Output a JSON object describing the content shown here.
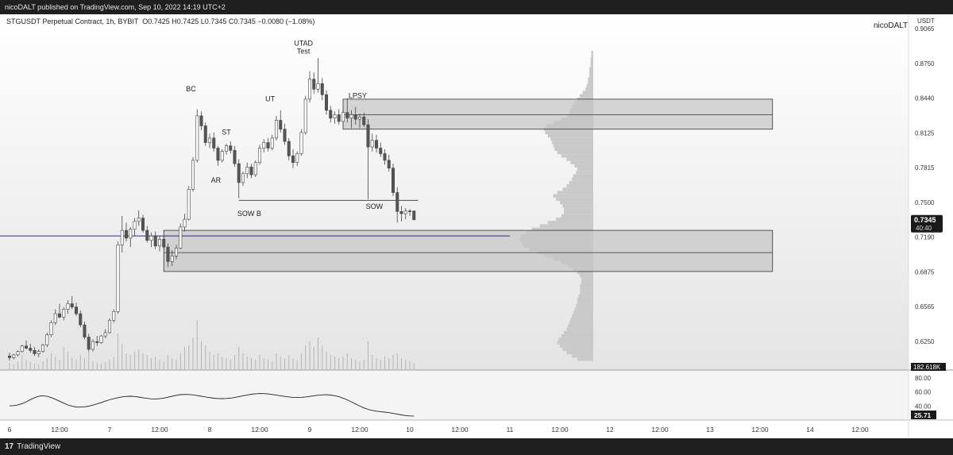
{
  "publish_banner": "nicoDALT published on TradingView.com, Sep 10, 2022 14:19 UTC+2",
  "symbol_line": {
    "symbol": "STGUSDT Perpetual Contract, 1h, BYBIT",
    "ohlc": "O0.7425 H0.7425 L0.7345 C0.7345 −0.0080 (−1.08%)"
  },
  "author_watermark": "nicoDALT",
  "currency": "USDT",
  "footer_brand": {
    "logo": "17",
    "name": "TradingView"
  },
  "colors": {
    "candle_up_fill": "#ffffff",
    "candle_down_fill": "#555555",
    "candle_outline": "#444444",
    "volume_profile": "#c9c9c9",
    "zone_fill": "#c4c4c4",
    "zone_border": "#333333",
    "poc_line": "#2a2a8a",
    "price_badge": "#1a1a1a",
    "rsi_line": "#222222",
    "background_top": "#ffffff",
    "background_bottom": "#e4e4e4"
  },
  "chart_data": {
    "type": "candlestick",
    "y_axis": {
      "range": [
        0.6065,
        0.9065
      ],
      "scale": "linear",
      "tick_labels": [
        "0.9065",
        "0.8750",
        "0.8440",
        "0.8125",
        "0.7815",
        "0.7500",
        "0.7190",
        "0.6875",
        "0.6565",
        "0.6250"
      ]
    },
    "x_axis": {
      "tick_labels": [
        "6",
        "12:00",
        "7",
        "12:00",
        "8",
        "12:00",
        "9",
        "12:00",
        "10",
        "12:00",
        "11",
        "12:00",
        "12",
        "12:00",
        "13",
        "12:00",
        "14",
        "12:00"
      ],
      "hours": [
        0,
        12,
        24,
        36,
        48,
        60,
        72,
        84,
        96,
        108,
        120,
        132,
        144,
        156,
        168,
        180,
        192,
        204
      ]
    },
    "last_price": {
      "price": "0.7345",
      "countdown": "40:40",
      "value": 0.7345
    },
    "volume_label": "182.618K",
    "rsi": {
      "tick_labels": [
        "80.00",
        "60.00",
        "40.00"
      ],
      "tick_values": [
        80,
        60,
        40
      ],
      "range": [
        20,
        90
      ],
      "last": "25.71",
      "values": [
        40.2,
        40.6,
        41.6,
        43.4,
        46.0,
        49.0,
        51.8,
        53.8,
        54.6,
        53.8,
        52.0,
        49.6,
        46.8,
        44.0,
        41.5,
        39.6,
        38.6,
        38.4,
        38.8,
        39.8,
        41.2,
        43.0,
        45.0,
        47.0,
        48.8,
        50.4,
        51.8,
        53.0,
        53.7,
        53.9,
        53.5,
        52.7,
        51.7,
        50.8,
        50.2,
        50.0,
        50.4,
        51.3,
        52.5,
        53.9,
        55.2,
        56.1,
        56.5,
        56.4,
        55.8,
        54.9,
        53.9,
        52.9,
        51.9,
        51.1,
        50.6,
        50.5,
        50.7,
        51.2,
        52.1,
        53.2,
        54.5,
        55.7,
        56.7,
        57.4,
        57.7,
        57.6,
        57.1,
        56.4,
        55.5,
        54.5,
        53.6,
        52.8,
        52.3,
        52.1,
        52.3,
        52.8,
        53.6,
        54.5,
        55.3,
        55.8,
        56.0,
        55.6,
        54.7,
        53.2,
        51.2,
        48.7,
        45.8,
        42.8,
        39.9,
        37.3,
        35.2,
        33.7,
        32.7,
        32.0,
        31.3,
        30.5,
        29.5,
        28.4,
        27.3,
        26.4,
        25.9,
        25.71
      ],
      "x_start": 0,
      "x_end": 97
    },
    "candles": [
      {
        "t": 0,
        "o": 0.612,
        "h": 0.615,
        "l": 0.608,
        "c": 0.6105
      },
      {
        "t": 1,
        "o": 0.6105,
        "h": 0.614,
        "l": 0.609,
        "c": 0.613
      },
      {
        "t": 2,
        "o": 0.613,
        "h": 0.617,
        "l": 0.6115,
        "c": 0.616
      },
      {
        "t": 3,
        "o": 0.616,
        "h": 0.622,
        "l": 0.615,
        "c": 0.621
      },
      {
        "t": 4,
        "o": 0.621,
        "h": 0.626,
        "l": 0.618,
        "c": 0.619
      },
      {
        "t": 5,
        "o": 0.619,
        "h": 0.623,
        "l": 0.615,
        "c": 0.617
      },
      {
        "t": 6,
        "o": 0.617,
        "h": 0.62,
        "l": 0.612,
        "c": 0.614
      },
      {
        "t": 7,
        "o": 0.614,
        "h": 0.618,
        "l": 0.611,
        "c": 0.616
      },
      {
        "t": 8,
        "o": 0.616,
        "h": 0.623,
        "l": 0.615,
        "c": 0.622
      },
      {
        "t": 9,
        "o": 0.622,
        "h": 0.633,
        "l": 0.62,
        "c": 0.631
      },
      {
        "t": 10,
        "o": 0.631,
        "h": 0.644,
        "l": 0.629,
        "c": 0.642
      },
      {
        "t": 11,
        "o": 0.642,
        "h": 0.654,
        "l": 0.64,
        "c": 0.65
      },
      {
        "t": 12,
        "o": 0.65,
        "h": 0.659,
        "l": 0.646,
        "c": 0.647
      },
      {
        "t": 13,
        "o": 0.647,
        "h": 0.656,
        "l": 0.644,
        "c": 0.654
      },
      {
        "t": 14,
        "o": 0.654,
        "h": 0.662,
        "l": 0.65,
        "c": 0.659
      },
      {
        "t": 15,
        "o": 0.659,
        "h": 0.666,
        "l": 0.654,
        "c": 0.656
      },
      {
        "t": 16,
        "o": 0.656,
        "h": 0.66,
        "l": 0.648,
        "c": 0.65
      },
      {
        "t": 17,
        "o": 0.65,
        "h": 0.653,
        "l": 0.638,
        "c": 0.64
      },
      {
        "t": 18,
        "o": 0.64,
        "h": 0.643,
        "l": 0.627,
        "c": 0.629
      },
      {
        "t": 19,
        "o": 0.629,
        "h": 0.632,
        "l": 0.616,
        "c": 0.618
      },
      {
        "t": 20,
        "o": 0.618,
        "h": 0.627,
        "l": 0.616,
        "c": 0.625
      },
      {
        "t": 21,
        "o": 0.625,
        "h": 0.63,
        "l": 0.621,
        "c": 0.624
      },
      {
        "t": 22,
        "o": 0.624,
        "h": 0.631,
        "l": 0.623,
        "c": 0.63
      },
      {
        "t": 23,
        "o": 0.63,
        "h": 0.636,
        "l": 0.628,
        "c": 0.633
      },
      {
        "t": 24,
        "o": 0.633,
        "h": 0.646,
        "l": 0.632,
        "c": 0.644
      },
      {
        "t": 25,
        "o": 0.644,
        "h": 0.654,
        "l": 0.642,
        "c": 0.652
      },
      {
        "t": 26,
        "o": 0.652,
        "h": 0.715,
        "l": 0.65,
        "c": 0.712
      },
      {
        "t": 27,
        "o": 0.712,
        "h": 0.738,
        "l": 0.705,
        "c": 0.725
      },
      {
        "t": 28,
        "o": 0.725,
        "h": 0.732,
        "l": 0.715,
        "c": 0.718
      },
      {
        "t": 29,
        "o": 0.718,
        "h": 0.728,
        "l": 0.71,
        "c": 0.726
      },
      {
        "t": 30,
        "o": 0.726,
        "h": 0.736,
        "l": 0.72,
        "c": 0.733
      },
      {
        "t": 31,
        "o": 0.733,
        "h": 0.743,
        "l": 0.729,
        "c": 0.736
      },
      {
        "t": 32,
        "o": 0.736,
        "h": 0.739,
        "l": 0.723,
        "c": 0.725
      },
      {
        "t": 33,
        "o": 0.725,
        "h": 0.729,
        "l": 0.714,
        "c": 0.716
      },
      {
        "t": 34,
        "o": 0.716,
        "h": 0.723,
        "l": 0.71,
        "c": 0.72
      },
      {
        "t": 35,
        "o": 0.72,
        "h": 0.724,
        "l": 0.708,
        "c": 0.711
      },
      {
        "t": 36,
        "o": 0.711,
        "h": 0.72,
        "l": 0.706,
        "c": 0.717
      },
      {
        "t": 37,
        "o": 0.717,
        "h": 0.721,
        "l": 0.708,
        "c": 0.71
      },
      {
        "t": 38,
        "o": 0.71,
        "h": 0.713,
        "l": 0.692,
        "c": 0.697
      },
      {
        "t": 39,
        "o": 0.697,
        "h": 0.707,
        "l": 0.693,
        "c": 0.702
      },
      {
        "t": 40,
        "o": 0.702,
        "h": 0.712,
        "l": 0.699,
        "c": 0.709
      },
      {
        "t": 41,
        "o": 0.709,
        "h": 0.731,
        "l": 0.708,
        "c": 0.728
      },
      {
        "t": 42,
        "o": 0.728,
        "h": 0.74,
        "l": 0.724,
        "c": 0.735
      },
      {
        "t": 43,
        "o": 0.735,
        "h": 0.765,
        "l": 0.734,
        "c": 0.762
      },
      {
        "t": 44,
        "o": 0.762,
        "h": 0.791,
        "l": 0.76,
        "c": 0.788
      },
      {
        "t": 45,
        "o": 0.788,
        "h": 0.834,
        "l": 0.786,
        "c": 0.828
      },
      {
        "t": 46,
        "o": 0.828,
        "h": 0.832,
        "l": 0.815,
        "c": 0.819
      },
      {
        "t": 47,
        "o": 0.819,
        "h": 0.822,
        "l": 0.801,
        "c": 0.804
      },
      {
        "t": 48,
        "o": 0.804,
        "h": 0.812,
        "l": 0.799,
        "c": 0.808
      },
      {
        "t": 49,
        "o": 0.808,
        "h": 0.813,
        "l": 0.796,
        "c": 0.799
      },
      {
        "t": 50,
        "o": 0.799,
        "h": 0.801,
        "l": 0.783,
        "c": 0.788
      },
      {
        "t": 51,
        "o": 0.788,
        "h": 0.798,
        "l": 0.786,
        "c": 0.796
      },
      {
        "t": 52,
        "o": 0.796,
        "h": 0.803,
        "l": 0.793,
        "c": 0.801
      },
      {
        "t": 53,
        "o": 0.801,
        "h": 0.805,
        "l": 0.794,
        "c": 0.797
      },
      {
        "t": 54,
        "o": 0.797,
        "h": 0.801,
        "l": 0.782,
        "c": 0.785
      },
      {
        "t": 55,
        "o": 0.785,
        "h": 0.789,
        "l": 0.754,
        "c": 0.768
      },
      {
        "t": 56,
        "o": 0.768,
        "h": 0.778,
        "l": 0.765,
        "c": 0.776
      },
      {
        "t": 57,
        "o": 0.776,
        "h": 0.786,
        "l": 0.772,
        "c": 0.782
      },
      {
        "t": 58,
        "o": 0.782,
        "h": 0.785,
        "l": 0.772,
        "c": 0.775
      },
      {
        "t": 59,
        "o": 0.775,
        "h": 0.788,
        "l": 0.773,
        "c": 0.786
      },
      {
        "t": 60,
        "o": 0.786,
        "h": 0.802,
        "l": 0.784,
        "c": 0.799
      },
      {
        "t": 61,
        "o": 0.799,
        "h": 0.807,
        "l": 0.795,
        "c": 0.804
      },
      {
        "t": 62,
        "o": 0.804,
        "h": 0.808,
        "l": 0.796,
        "c": 0.799
      },
      {
        "t": 63,
        "o": 0.799,
        "h": 0.811,
        "l": 0.797,
        "c": 0.808
      },
      {
        "t": 64,
        "o": 0.808,
        "h": 0.828,
        "l": 0.806,
        "c": 0.824
      },
      {
        "t": 65,
        "o": 0.824,
        "h": 0.833,
        "l": 0.813,
        "c": 0.816
      },
      {
        "t": 66,
        "o": 0.816,
        "h": 0.821,
        "l": 0.802,
        "c": 0.805
      },
      {
        "t": 67,
        "o": 0.805,
        "h": 0.808,
        "l": 0.788,
        "c": 0.792
      },
      {
        "t": 68,
        "o": 0.792,
        "h": 0.798,
        "l": 0.781,
        "c": 0.786
      },
      {
        "t": 69,
        "o": 0.786,
        "h": 0.796,
        "l": 0.783,
        "c": 0.794
      },
      {
        "t": 70,
        "o": 0.794,
        "h": 0.816,
        "l": 0.792,
        "c": 0.813
      },
      {
        "t": 71,
        "o": 0.813,
        "h": 0.846,
        "l": 0.811,
        "c": 0.843
      },
      {
        "t": 72,
        "o": 0.843,
        "h": 0.868,
        "l": 0.84,
        "c": 0.861
      },
      {
        "t": 73,
        "o": 0.861,
        "h": 0.867,
        "l": 0.848,
        "c": 0.852
      },
      {
        "t": 74,
        "o": 0.852,
        "h": 0.88,
        "l": 0.849,
        "c": 0.857
      },
      {
        "t": 75,
        "o": 0.857,
        "h": 0.862,
        "l": 0.842,
        "c": 0.847
      },
      {
        "t": 76,
        "o": 0.847,
        "h": 0.851,
        "l": 0.829,
        "c": 0.833
      },
      {
        "t": 77,
        "o": 0.833,
        "h": 0.837,
        "l": 0.822,
        "c": 0.826
      },
      {
        "t": 78,
        "o": 0.826,
        "h": 0.832,
        "l": 0.821,
        "c": 0.829
      },
      {
        "t": 79,
        "o": 0.829,
        "h": 0.834,
        "l": 0.82,
        "c": 0.823
      },
      {
        "t": 80,
        "o": 0.823,
        "h": 0.835,
        "l": 0.819,
        "c": 0.831
      },
      {
        "t": 81,
        "o": 0.831,
        "h": 0.844,
        "l": 0.822,
        "c": 0.826
      },
      {
        "t": 82,
        "o": 0.826,
        "h": 0.833,
        "l": 0.817,
        "c": 0.829
      },
      {
        "t": 83,
        "o": 0.829,
        "h": 0.836,
        "l": 0.82,
        "c": 0.825
      },
      {
        "t": 84,
        "o": 0.825,
        "h": 0.83,
        "l": 0.817,
        "c": 0.827
      },
      {
        "t": 85,
        "o": 0.827,
        "h": 0.831,
        "l": 0.818,
        "c": 0.82
      },
      {
        "t": 86,
        "o": 0.82,
        "h": 0.825,
        "l": 0.753,
        "c": 0.8
      },
      {
        "t": 87,
        "o": 0.8,
        "h": 0.812,
        "l": 0.796,
        "c": 0.806
      },
      {
        "t": 88,
        "o": 0.806,
        "h": 0.811,
        "l": 0.795,
        "c": 0.799
      },
      {
        "t": 89,
        "o": 0.799,
        "h": 0.804,
        "l": 0.791,
        "c": 0.794
      },
      {
        "t": 90,
        "o": 0.794,
        "h": 0.798,
        "l": 0.784,
        "c": 0.788
      },
      {
        "t": 91,
        "o": 0.788,
        "h": 0.793,
        "l": 0.778,
        "c": 0.781
      },
      {
        "t": 92,
        "o": 0.781,
        "h": 0.785,
        "l": 0.756,
        "c": 0.759
      },
      {
        "t": 93,
        "o": 0.759,
        "h": 0.764,
        "l": 0.732,
        "c": 0.742
      },
      {
        "t": 94,
        "o": 0.742,
        "h": 0.747,
        "l": 0.733,
        "c": 0.74
      },
      {
        "t": 95,
        "o": 0.74,
        "h": 0.745,
        "l": 0.735,
        "c": 0.7425
      },
      {
        "t": 96,
        "o": 0.7425,
        "h": 0.744,
        "l": 0.738,
        "c": 0.742
      },
      {
        "t": 97,
        "o": 0.7425,
        "h": 0.7425,
        "l": 0.7345,
        "c": 0.7345
      }
    ],
    "volume": [
      0.08,
      0.06,
      0.1,
      0.18,
      0.12,
      0.09,
      0.07,
      0.06,
      0.1,
      0.14,
      0.2,
      0.16,
      0.12,
      0.28,
      0.22,
      0.15,
      0.12,
      0.18,
      0.14,
      0.22,
      0.1,
      0.08,
      0.07,
      0.09,
      0.12,
      0.16,
      0.45,
      0.32,
      0.2,
      0.18,
      0.22,
      0.25,
      0.2,
      0.18,
      0.14,
      0.16,
      0.12,
      0.1,
      0.18,
      0.14,
      0.12,
      0.2,
      0.28,
      0.3,
      0.4,
      0.62,
      0.35,
      0.3,
      0.22,
      0.18,
      0.2,
      0.16,
      0.14,
      0.12,
      0.18,
      0.28,
      0.2,
      0.16,
      0.14,
      0.12,
      0.18,
      0.14,
      0.12,
      0.1,
      0.2,
      0.16,
      0.14,
      0.18,
      0.14,
      0.12,
      0.2,
      0.3,
      0.35,
      0.28,
      0.4,
      0.3,
      0.22,
      0.18,
      0.16,
      0.14,
      0.16,
      0.2,
      0.14,
      0.12,
      0.1,
      0.12,
      0.35,
      0.18,
      0.14,
      0.12,
      0.16,
      0.14,
      0.18,
      0.2,
      0.14,
      0.12,
      0.1,
      0.08
    ],
    "volume_profile": {
      "price_step": 0.003,
      "price_start": 0.6075,
      "widths": [
        0.12,
        0.16,
        0.2,
        0.23,
        0.25,
        0.27,
        0.26,
        0.24,
        0.22,
        0.2,
        0.19,
        0.18,
        0.17,
        0.16,
        0.15,
        0.14,
        0.13,
        0.12,
        0.12,
        0.11,
        0.1,
        0.1,
        0.1,
        0.09,
        0.09,
        0.1,
        0.12,
        0.15,
        0.19,
        0.24,
        0.3,
        0.36,
        0.42,
        0.48,
        0.52,
        0.54,
        0.55,
        0.54,
        0.5,
        0.46,
        0.4,
        0.34,
        0.28,
        0.24,
        0.22,
        0.22,
        0.23,
        0.25,
        0.28,
        0.3,
        0.27,
        0.23,
        0.2,
        0.18,
        0.16,
        0.15,
        0.13,
        0.12,
        0.14,
        0.17,
        0.2,
        0.24,
        0.27,
        0.29,
        0.3,
        0.31,
        0.32,
        0.34,
        0.36,
        0.37,
        0.35,
        0.3,
        0.24,
        0.2,
        0.18,
        0.17,
        0.16,
        0.14,
        0.12,
        0.1,
        0.08,
        0.06,
        0.05,
        0.04,
        0.04,
        0.03,
        0.03,
        0.03,
        0.02,
        0.02,
        0.02,
        0.015,
        0.015
      ],
      "width_unit_hours": 32
    },
    "zones": [
      {
        "t_start": 80,
        "t_end": 183,
        "top": 0.843,
        "mid": 0.829,
        "bottom": 0.816
      },
      {
        "t_start": 37,
        "t_end": 183,
        "top": 0.725,
        "mid": 0.705,
        "bottom": 0.688
      }
    ],
    "poc_line": {
      "price": 0.72,
      "t_start": 0,
      "t_end": 120
    },
    "levels": [
      {
        "price": 0.752,
        "t_start": 55,
        "t_end": 98
      }
    ],
    "annotations": [
      {
        "text": "UTAD",
        "t": 70.5,
        "price": 0.8912
      },
      {
        "text": "Test",
        "t": 70.5,
        "price": 0.884
      },
      {
        "text": "BC",
        "t": 43.5,
        "price": 0.85
      },
      {
        "text": "LPSY",
        "t": 83.5,
        "price": 0.844
      },
      {
        "text": "UT",
        "t": 62.5,
        "price": 0.841
      },
      {
        "text": "ST",
        "t": 52,
        "price": 0.811
      },
      {
        "text": "AR",
        "t": 49.5,
        "price": 0.768
      },
      {
        "text": "SOW B",
        "t": 57.5,
        "price": 0.738
      },
      {
        "text": "SOW",
        "t": 87.5,
        "price": 0.7445
      }
    ]
  }
}
